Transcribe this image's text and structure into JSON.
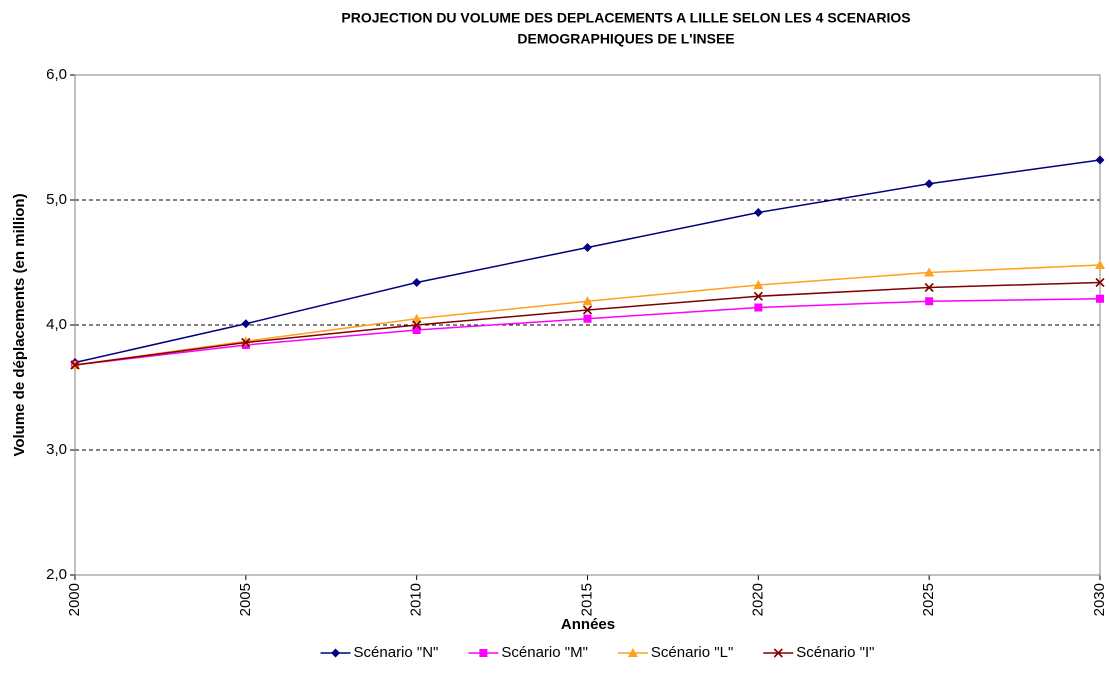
{
  "chart_data": {
    "type": "line",
    "title": [
      "PROJECTION DU VOLUME DES DEPLACEMENTS A LILLE SELON LES 4 SCENARIOS",
      "DEMOGRAPHIQUES DE L'INSEE"
    ],
    "x_label": "Années",
    "y_label": "Volume de déplacements (en million)",
    "x": [
      2000,
      2005,
      2010,
      2015,
      2020,
      2025,
      2030
    ],
    "xlim": [
      2000,
      2030
    ],
    "xticks": [
      2000,
      2005,
      2010,
      2015,
      2020,
      2025,
      2030
    ],
    "ylim": [
      2,
      6
    ],
    "yticks": [
      {
        "value": 2,
        "label": "2,0"
      },
      {
        "value": 3,
        "label": "3,0"
      },
      {
        "value": 4,
        "label": "4,0"
      },
      {
        "value": 5,
        "label": "5,0"
      },
      {
        "value": 6,
        "label": "6,0"
      }
    ],
    "grid": true,
    "legend": "bottom",
    "series": [
      {
        "name": "Scénario \"N\"",
        "color": "#000080",
        "marker": "diamond",
        "values": [
          3.7,
          4.01,
          4.34,
          4.62,
          4.9,
          5.13,
          5.32
        ]
      },
      {
        "name": "Scénario \"M\"",
        "color": "#ff00ff",
        "marker": "square",
        "values": [
          3.68,
          3.84,
          3.96,
          4.05,
          4.14,
          4.19,
          4.21
        ]
      },
      {
        "name": "Scénario \"L\"",
        "color": "#ffa020",
        "marker": "triangle",
        "values": [
          3.68,
          3.87,
          4.05,
          4.19,
          4.32,
          4.42,
          4.48
        ]
      },
      {
        "name": "Scénario \"I\"",
        "color": "#800000",
        "marker": "cross",
        "values": [
          3.68,
          3.86,
          4.0,
          4.12,
          4.23,
          4.3,
          4.34
        ]
      }
    ]
  }
}
